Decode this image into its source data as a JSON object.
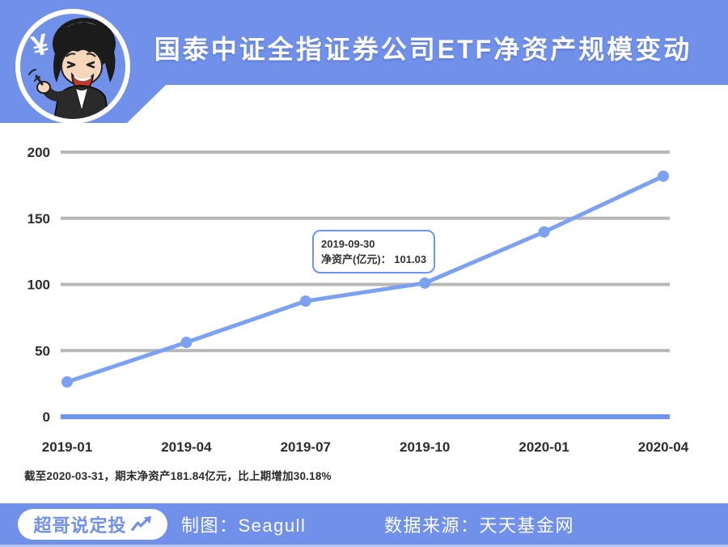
{
  "colors": {
    "accent_blue": "#7190E9",
    "line_blue": "#7DA1F1",
    "axis_blue": "#6E95ED",
    "grid_gray": "#B7B7B7",
    "tick_text": "#2D2D2D",
    "tooltip_border": "#6E96EA"
  },
  "header": {
    "title": "国泰中证全指证券公司ETF净资产规模变动",
    "avatar_symbol": "¥"
  },
  "chart_data": {
    "type": "line",
    "title": "国泰中证全指证券公司ETF净资产规模变动",
    "categories": [
      "2019-01",
      "2019-04",
      "2019-07",
      "2019-10",
      "2020-01",
      "2020-04"
    ],
    "series": [
      {
        "name": "净资产(亿元)",
        "values": [
          26.3,
          56.2,
          87.4,
          101.03,
          139.68,
          181.84
        ]
      }
    ],
    "ylim": [
      0,
      200
    ],
    "yticks": [
      0,
      50,
      100,
      150,
      200
    ],
    "grid": true,
    "legend": "none",
    "colors": {
      "line": "#7DA1F1",
      "point": "#7DA1F1",
      "grid": "#B7B7B7",
      "zero_axis": "#6E95ED"
    }
  },
  "tooltip": {
    "date": "2019-09-30",
    "label": "净资产(亿元)：",
    "value": "101.03"
  },
  "footnote": "截至2020-03-31，期末净资产181.84亿元，比上期增加30.18%",
  "footer": {
    "badge_label": "超哥说定投",
    "maker_label": "制图：Seagull",
    "source_label": "数据来源：天天基金网"
  }
}
